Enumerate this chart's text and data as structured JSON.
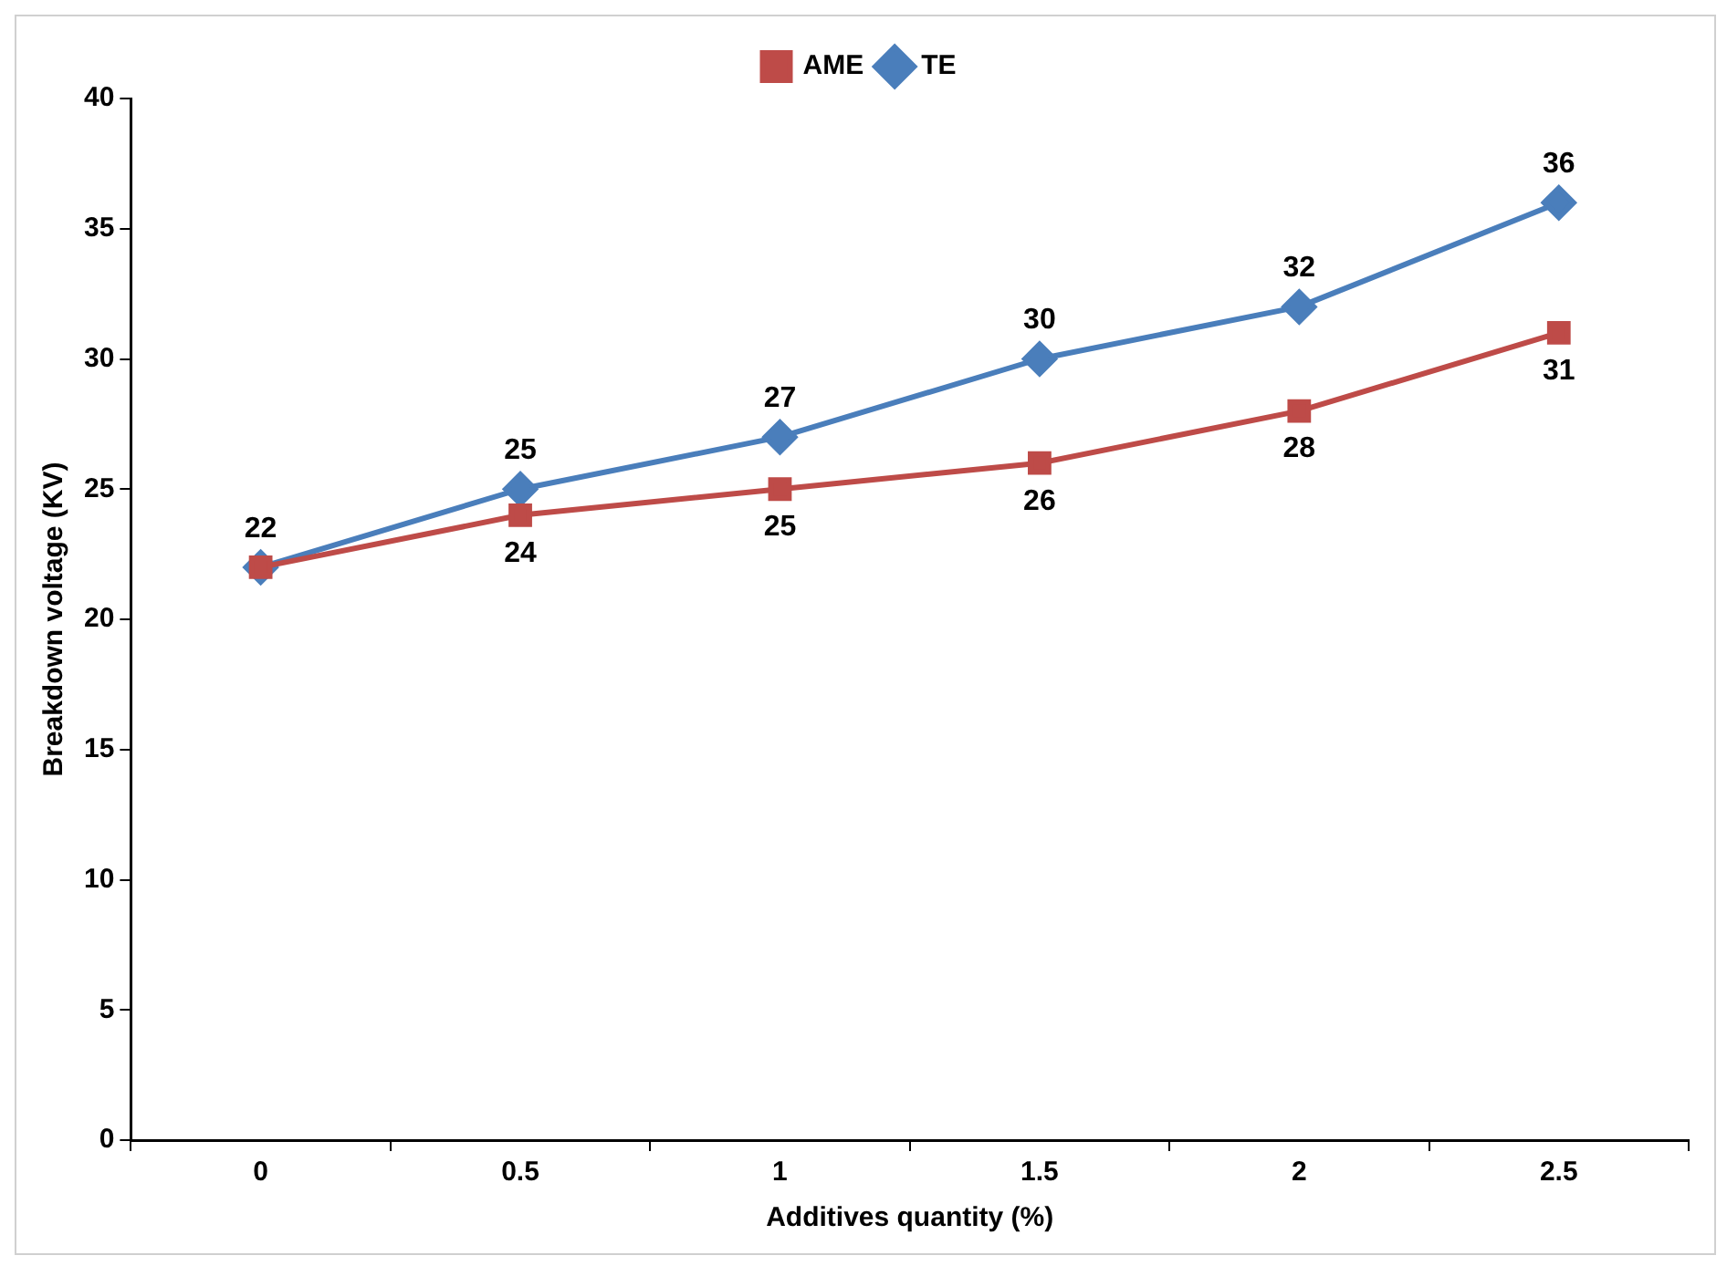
{
  "chart_data": {
    "type": "line",
    "xlabel": "Additives quantity (%)",
    "ylabel": "Breakdown voltage (KV)",
    "categories": [
      "0",
      "0.5",
      "1",
      "1.5",
      "2",
      "2.5"
    ],
    "ylim": [
      0,
      40
    ],
    "yticks": [
      0,
      5,
      10,
      15,
      20,
      25,
      30,
      35,
      40
    ],
    "grid": false,
    "legend": "top",
    "series": [
      {
        "name": "TE",
        "color": "#4a7ebb",
        "marker": "diamond",
        "values": [
          22,
          25,
          27,
          30,
          32,
          36
        ],
        "value_labels": [
          "22",
          "25",
          "27",
          "30",
          "32",
          "36"
        ]
      },
      {
        "name": "AME",
        "color": "#be4b48",
        "marker": "square",
        "values": [
          22,
          24,
          25,
          26,
          28,
          31
        ],
        "value_labels": [
          null,
          "24",
          "25",
          "26",
          "28",
          "31"
        ]
      }
    ]
  }
}
